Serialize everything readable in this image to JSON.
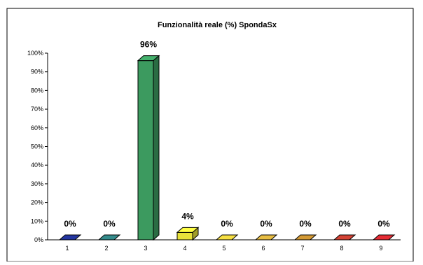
{
  "chart_data": {
    "type": "bar",
    "title": "Funzionalità reale (%) SpondaSx",
    "categories": [
      "1",
      "2",
      "3",
      "4",
      "5",
      "6",
      "7",
      "8",
      "9"
    ],
    "values": [
      0,
      0,
      96,
      4,
      0,
      0,
      0,
      0,
      0
    ],
    "data_labels": [
      "0%",
      "0%",
      "96%",
      "4%",
      "0%",
      "0%",
      "0%",
      "0%",
      "0%"
    ],
    "y_ticks": [
      "0%",
      "10%",
      "20%",
      "30%",
      "40%",
      "50%",
      "60%",
      "70%",
      "80%",
      "90%",
      "100%"
    ],
    "ylim": [
      0,
      100
    ],
    "bar_colors": [
      "#1f2f8c",
      "#2e7a7a",
      "#3c9a5f",
      "#e8e23a",
      "#d6c23a",
      "#c9a43a",
      "#b8862e",
      "#b83a2e",
      "#c8262e"
    ],
    "grid": false,
    "legend": false
  }
}
